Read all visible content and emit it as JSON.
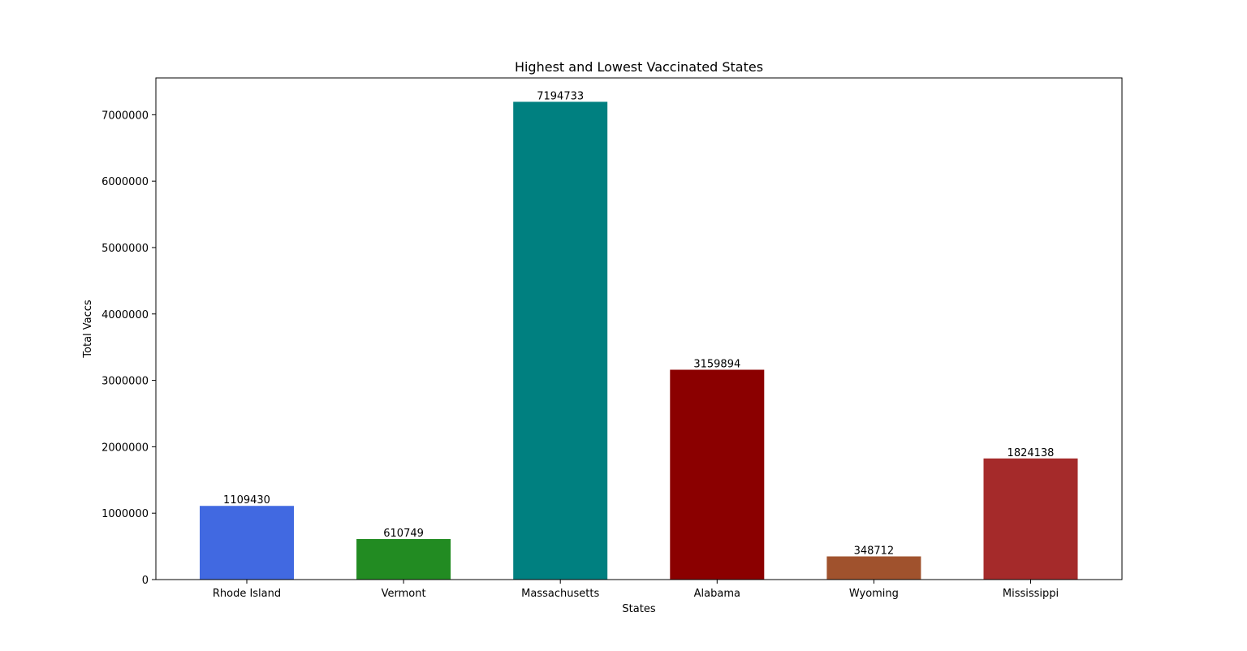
{
  "chart_data": {
    "type": "bar",
    "title": "Highest and Lowest Vaccinated States",
    "xlabel": "States",
    "ylabel": "Total Vaccs",
    "categories": [
      "Rhode Island",
      "Vermont",
      "Massachusetts",
      "Alabama",
      "Wyoming",
      "Mississippi"
    ],
    "values": [
      1109430,
      610749,
      7194733,
      3159894,
      348712,
      1824138
    ],
    "data_labels": [
      "1109430",
      "610749",
      "7194733",
      "3159894",
      "348712",
      "1824138"
    ],
    "colors": [
      "#4169e1",
      "#228b22",
      "#008080",
      "#8b0000",
      "#a0522d",
      "#a52a2a"
    ],
    "ylim": [
      0,
      7554470
    ],
    "yticks": [
      0,
      1000000,
      2000000,
      3000000,
      4000000,
      5000000,
      6000000,
      7000000
    ],
    "ytick_labels": [
      "0",
      "1000000",
      "2000000",
      "3000000",
      "4000000",
      "5000000",
      "6000000",
      "7000000"
    ],
    "grid": false,
    "legend": "none"
  }
}
